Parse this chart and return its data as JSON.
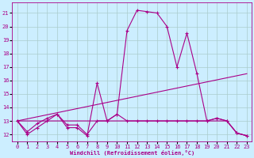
{
  "xlabel": "Windchill (Refroidissement éolien,°C)",
  "bg_color": "#cceeff",
  "line_color": "#aa0088",
  "grid_color": "#aacccc",
  "xlim": [
    -0.5,
    23.5
  ],
  "ylim": [
    11.5,
    21.8
  ],
  "yticks": [
    12,
    13,
    14,
    15,
    16,
    17,
    18,
    19,
    20,
    21
  ],
  "xticks": [
    0,
    1,
    2,
    3,
    4,
    5,
    6,
    7,
    8,
    9,
    10,
    11,
    12,
    13,
    14,
    15,
    16,
    17,
    18,
    19,
    20,
    21,
    22,
    23
  ],
  "series": [
    {
      "x": [
        0,
        1,
        2,
        3,
        4,
        5,
        6,
        7,
        8,
        9,
        10,
        11,
        12,
        13,
        14,
        15,
        16,
        17,
        18,
        19,
        20,
        21,
        22,
        23
      ],
      "y": [
        13.0,
        12.0,
        12.5,
        13.0,
        13.5,
        12.7,
        12.7,
        12.0,
        13.0,
        13.0,
        13.5,
        19.7,
        21.2,
        21.1,
        21.0,
        20.0,
        17.0,
        19.5,
        16.5,
        13.0,
        13.2,
        13.0,
        12.1,
        11.9
      ],
      "marker": "+"
    },
    {
      "x": [
        0,
        1,
        2,
        3,
        4,
        5,
        6,
        7,
        8,
        9,
        10,
        11,
        12,
        13,
        14,
        15,
        16,
        17,
        18,
        19,
        20,
        21,
        22,
        23
      ],
      "y": [
        13.0,
        12.2,
        12.8,
        13.2,
        13.5,
        12.5,
        12.5,
        11.9,
        15.8,
        13.0,
        13.5,
        13.0,
        13.0,
        13.0,
        13.0,
        13.0,
        13.0,
        13.0,
        13.0,
        13.0,
        13.2,
        13.0,
        12.1,
        11.9
      ],
      "marker": "+"
    },
    {
      "x": [
        0,
        23
      ],
      "y": [
        13.0,
        16.5
      ],
      "marker": null
    },
    {
      "x": [
        0,
        20,
        21,
        22,
        23
      ],
      "y": [
        13.0,
        13.0,
        13.0,
        12.1,
        11.9
      ],
      "marker": null
    }
  ]
}
